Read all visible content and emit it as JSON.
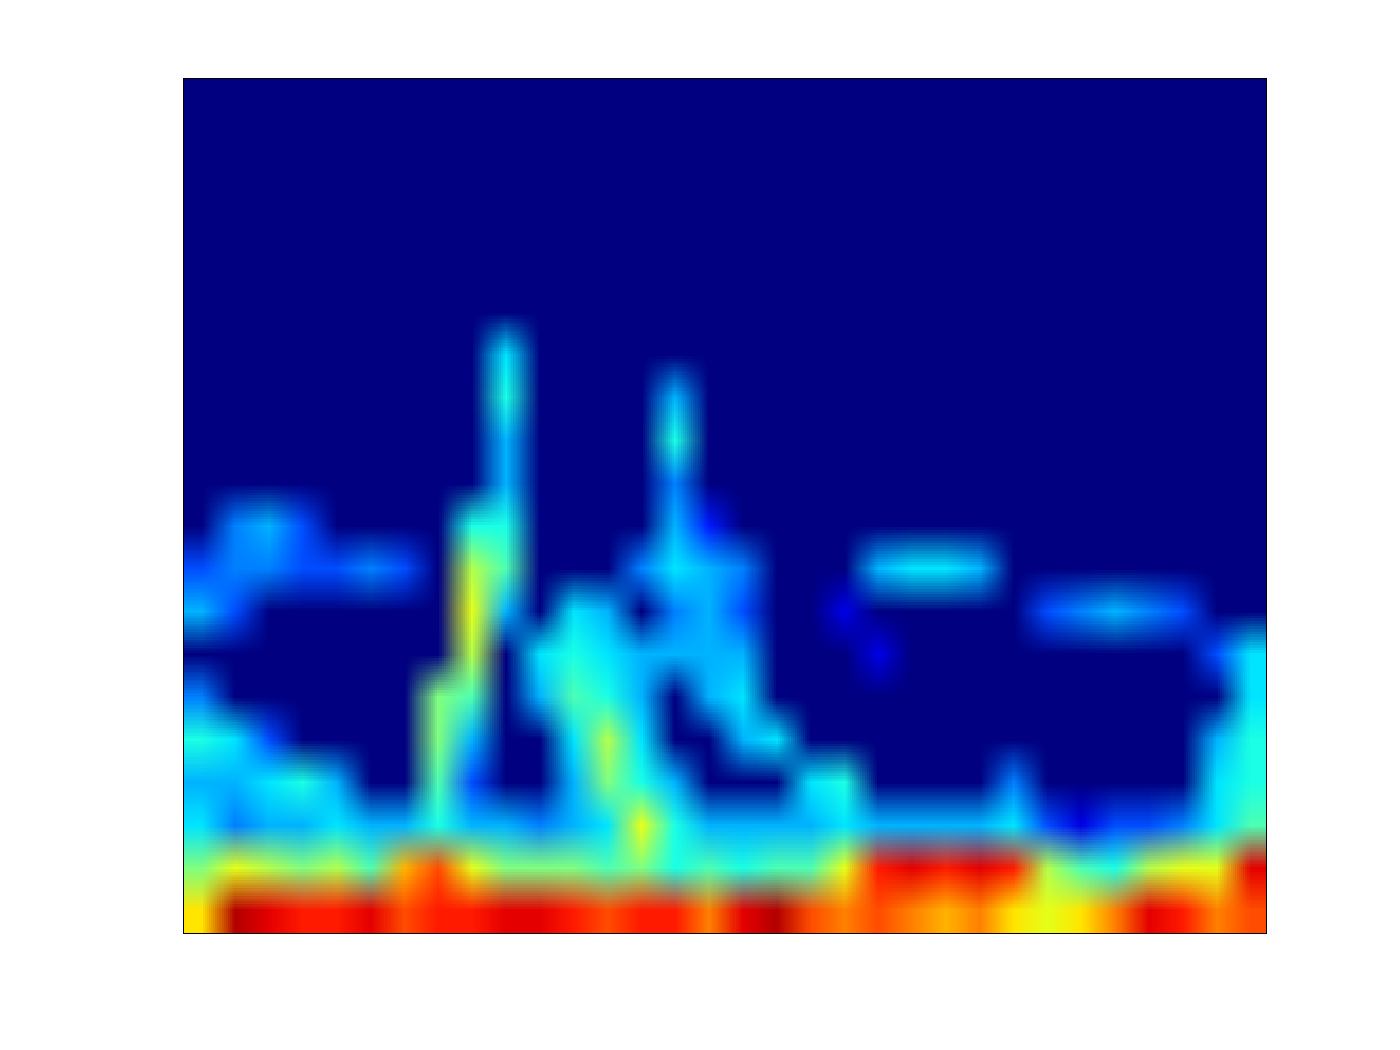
{
  "chart_data": {
    "type": "heatmap",
    "tick_labels": false,
    "color_range": [
      0,
      1
    ],
    "cells": [
      [
        0,
        0,
        0,
        0,
        0,
        0,
        0,
        0,
        0,
        0,
        0,
        0,
        0,
        0,
        0,
        0,
        0,
        0,
        0,
        0,
        0,
        0,
        0,
        0,
        0,
        0,
        0,
        0,
        0,
        0,
        0,
        0
      ],
      [
        0,
        0,
        0,
        0,
        0,
        0,
        0,
        0,
        0,
        0,
        0,
        0,
        0,
        0,
        0,
        0,
        0,
        0,
        0,
        0,
        0,
        0,
        0,
        0,
        0,
        0,
        0,
        0,
        0,
        0,
        0,
        0
      ],
      [
        0,
        0,
        0,
        0,
        0,
        0,
        0,
        0,
        0,
        0,
        0,
        0,
        0,
        0,
        0,
        0,
        0,
        0,
        0,
        0,
        0,
        0,
        0,
        0,
        0,
        0,
        0,
        0,
        0,
        0,
        0,
        0
      ],
      [
        0,
        0,
        0,
        0,
        0,
        0,
        0,
        0,
        0,
        0,
        0,
        0,
        0,
        0,
        0,
        0,
        0,
        0,
        0,
        0,
        0,
        0,
        0,
        0,
        0,
        0,
        0,
        0,
        0,
        0,
        0,
        0
      ],
      [
        0,
        0,
        0,
        0,
        0,
        0,
        0,
        0,
        0,
        0,
        0,
        0,
        0,
        0,
        0,
        0,
        0,
        0,
        0,
        0,
        0,
        0,
        0,
        0,
        0,
        0,
        0,
        0,
        0,
        0,
        0,
        0
      ],
      [
        0,
        0,
        0,
        0,
        0,
        0,
        0,
        0,
        0,
        0,
        0,
        0,
        0,
        0,
        0,
        0,
        0,
        0,
        0,
        0,
        0,
        0,
        0,
        0,
        0,
        0,
        0,
        0,
        0,
        0,
        0,
        0
      ],
      [
        0,
        0,
        0,
        0,
        0,
        0,
        0,
        0,
        0,
        0.35,
        0,
        0,
        0,
        0,
        0,
        0,
        0,
        0,
        0,
        0,
        0,
        0,
        0,
        0,
        0,
        0,
        0,
        0,
        0,
        0,
        0,
        0
      ],
      [
        0,
        0,
        0,
        0,
        0,
        0,
        0,
        0,
        0,
        0.4,
        0,
        0,
        0,
        0,
        0.3,
        0,
        0,
        0,
        0,
        0,
        0,
        0,
        0,
        0,
        0,
        0,
        0,
        0,
        0,
        0,
        0,
        0
      ],
      [
        0,
        0,
        0,
        0,
        0,
        0,
        0,
        0,
        0,
        0.3,
        0,
        0,
        0,
        0,
        0.4,
        0,
        0,
        0,
        0,
        0,
        0,
        0,
        0,
        0,
        0,
        0,
        0,
        0,
        0,
        0,
        0,
        0
      ],
      [
        0,
        0,
        0,
        0,
        0,
        0,
        0,
        0,
        0,
        0.3,
        0,
        0,
        0,
        0,
        0.25,
        0,
        0,
        0,
        0,
        0,
        0,
        0,
        0,
        0,
        0,
        0,
        0,
        0,
        0,
        0,
        0,
        0
      ],
      [
        0,
        0.25,
        0.3,
        0.2,
        0,
        0,
        0,
        0,
        0.4,
        0.4,
        0,
        0,
        0,
        0,
        0.3,
        0.15,
        0,
        0,
        0,
        0,
        0,
        0,
        0,
        0,
        0,
        0,
        0,
        0,
        0,
        0,
        0,
        0
      ],
      [
        0.2,
        0.25,
        0.25,
        0.2,
        0.2,
        0.25,
        0.2,
        0,
        0.55,
        0.45,
        0,
        0,
        0,
        0.25,
        0.35,
        0.3,
        0.25,
        0,
        0,
        0,
        0.3,
        0.35,
        0.35,
        0.3,
        0,
        0,
        0,
        0,
        0,
        0,
        0,
        0
      ],
      [
        0.3,
        0.2,
        0,
        0,
        0,
        0,
        0,
        0,
        0.6,
        0.3,
        0,
        0.35,
        0.3,
        0,
        0.25,
        0.3,
        0.2,
        0,
        0,
        0.1,
        0,
        0,
        0,
        0,
        0,
        0.2,
        0.25,
        0.3,
        0.25,
        0.2,
        0,
        0
      ],
      [
        0,
        0,
        0,
        0,
        0,
        0,
        0,
        0,
        0.55,
        0,
        0.35,
        0.4,
        0.35,
        0.3,
        0.3,
        0.3,
        0.3,
        0,
        0,
        0,
        0.1,
        0,
        0,
        0,
        0,
        0,
        0,
        0,
        0,
        0,
        0.2,
        0.35
      ],
      [
        0.25,
        0,
        0,
        0,
        0,
        0,
        0,
        0.5,
        0.45,
        0,
        0.3,
        0.45,
        0.4,
        0.3,
        0,
        0.3,
        0.35,
        0,
        0,
        0,
        0,
        0,
        0,
        0,
        0,
        0,
        0,
        0,
        0,
        0,
        0,
        0.35
      ],
      [
        0.4,
        0.35,
        0.2,
        0,
        0,
        0,
        0,
        0.5,
        0.3,
        0,
        0,
        0.35,
        0.55,
        0.35,
        0,
        0,
        0.3,
        0.35,
        0,
        0,
        0,
        0,
        0,
        0,
        0,
        0,
        0,
        0,
        0,
        0,
        0.3,
        0.4
      ],
      [
        0.3,
        0.3,
        0.35,
        0.4,
        0.3,
        0,
        0,
        0.45,
        0.2,
        0,
        0,
        0.3,
        0.5,
        0.4,
        0.3,
        0,
        0,
        0,
        0.35,
        0.4,
        0,
        0,
        0,
        0,
        0.25,
        0,
        0,
        0,
        0,
        0,
        0.35,
        0.4
      ],
      [
        0.35,
        0.25,
        0.3,
        0.3,
        0.35,
        0.3,
        0.3,
        0.4,
        0.3,
        0.3,
        0.25,
        0.3,
        0.35,
        0.6,
        0.4,
        0.3,
        0.3,
        0.3,
        0.3,
        0.35,
        0.3,
        0.3,
        0.3,
        0.3,
        0.35,
        0.2,
        0.1,
        0.2,
        0.2,
        0.25,
        0.35,
        0.45
      ],
      [
        0.5,
        0.6,
        0.55,
        0.5,
        0.55,
        0.45,
        0.7,
        0.8,
        0.6,
        0.5,
        0.5,
        0.5,
        0.45,
        0.5,
        0.4,
        0.45,
        0.4,
        0.45,
        0.45,
        0.6,
        0.85,
        0.9,
        0.85,
        0.9,
        0.85,
        0.55,
        0.45,
        0.4,
        0.55,
        0.6,
        0.6,
        0.9
      ],
      [
        0.65,
        0.95,
        0.9,
        0.85,
        0.85,
        0.9,
        0.8,
        0.85,
        0.85,
        0.9,
        0.9,
        0.85,
        0.8,
        0.85,
        0.85,
        0.75,
        0.9,
        0.95,
        0.8,
        0.75,
        0.8,
        0.75,
        0.7,
        0.75,
        0.65,
        0.6,
        0.65,
        0.75,
        0.9,
        0.85,
        0.75,
        0.8
      ]
    ]
  }
}
